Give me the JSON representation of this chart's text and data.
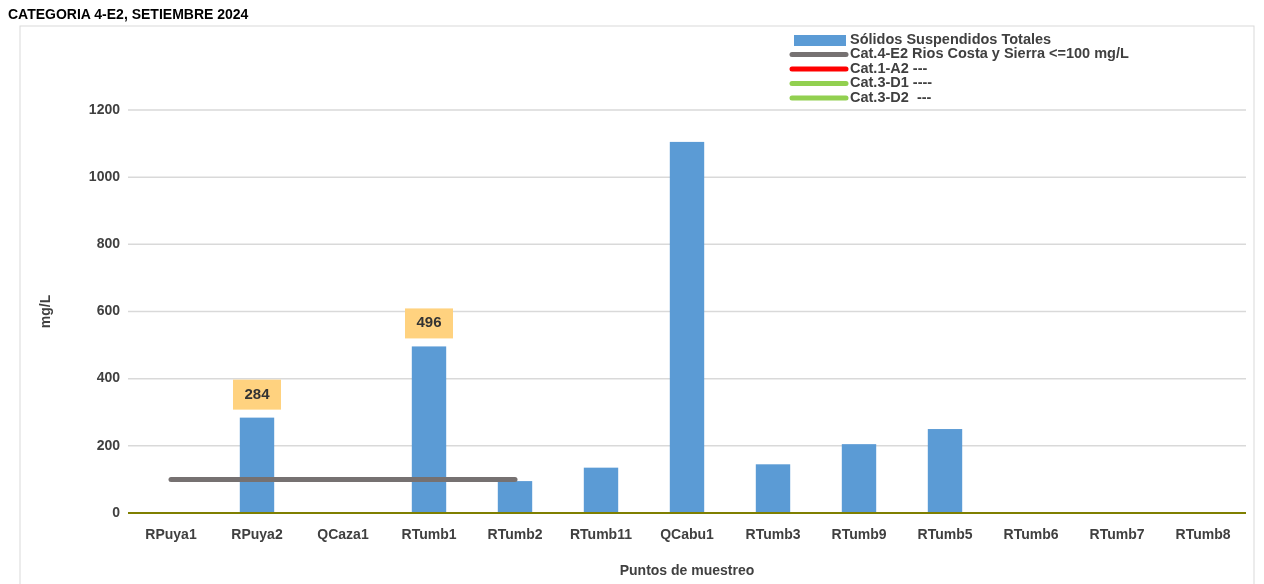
{
  "chart_data": {
    "type": "bar",
    "title": "CATEGORIA 4-E2, SETIEMBRE 2024",
    "xlabel": "Puntos de muestreo",
    "ylabel": "mg/L",
    "categories": [
      "RPuya1",
      "RPuya2",
      "QCaza1",
      "RTumb1",
      "RTumb2",
      "RTumb11",
      "QCabu1",
      "RTumb3",
      "RTumb9",
      "RTumb5",
      "RTumb6",
      "RTumb7",
      "RTumb8"
    ],
    "series": [
      {
        "name": "Sólidos Suspendidos Totales",
        "color": "#5b9bd5",
        "values": [
          null,
          284,
          null,
          496,
          95,
          135,
          1105,
          145,
          205,
          250,
          null,
          null,
          null
        ],
        "value_labels": [
          null,
          "284",
          null,
          "496",
          null,
          null,
          null,
          null,
          null,
          null,
          null,
          null,
          null
        ]
      },
      {
        "name": "Cat.4-E2 Rios Costa y Sierra <=100 mg/L",
        "type": "line",
        "color": "#767171",
        "values": [
          100,
          100,
          100,
          100,
          100,
          null,
          null,
          null,
          null,
          null,
          null,
          null,
          null
        ]
      },
      {
        "name": "Cat.1-A2 ---",
        "type": "line",
        "color": "#ff0000",
        "values": [
          null,
          null,
          null,
          null,
          null,
          null,
          null,
          null,
          null,
          null,
          null,
          null,
          null
        ]
      },
      {
        "name": "Cat.3-D1 ----",
        "type": "line",
        "color": "#92d050",
        "values": [
          null,
          null,
          null,
          null,
          null,
          null,
          null,
          null,
          null,
          null,
          null,
          null,
          null
        ]
      },
      {
        "name": "Cat.3-D2  ---",
        "type": "line",
        "color": "#92d050",
        "values": [
          null,
          null,
          null,
          null,
          null,
          null,
          null,
          null,
          null,
          null,
          null,
          null,
          null
        ]
      }
    ],
    "ylim": [
      0,
      1200
    ],
    "yticks": [
      0,
      200,
      400,
      600,
      800,
      1000,
      1200
    ],
    "grid": "y",
    "legend": "top right"
  }
}
